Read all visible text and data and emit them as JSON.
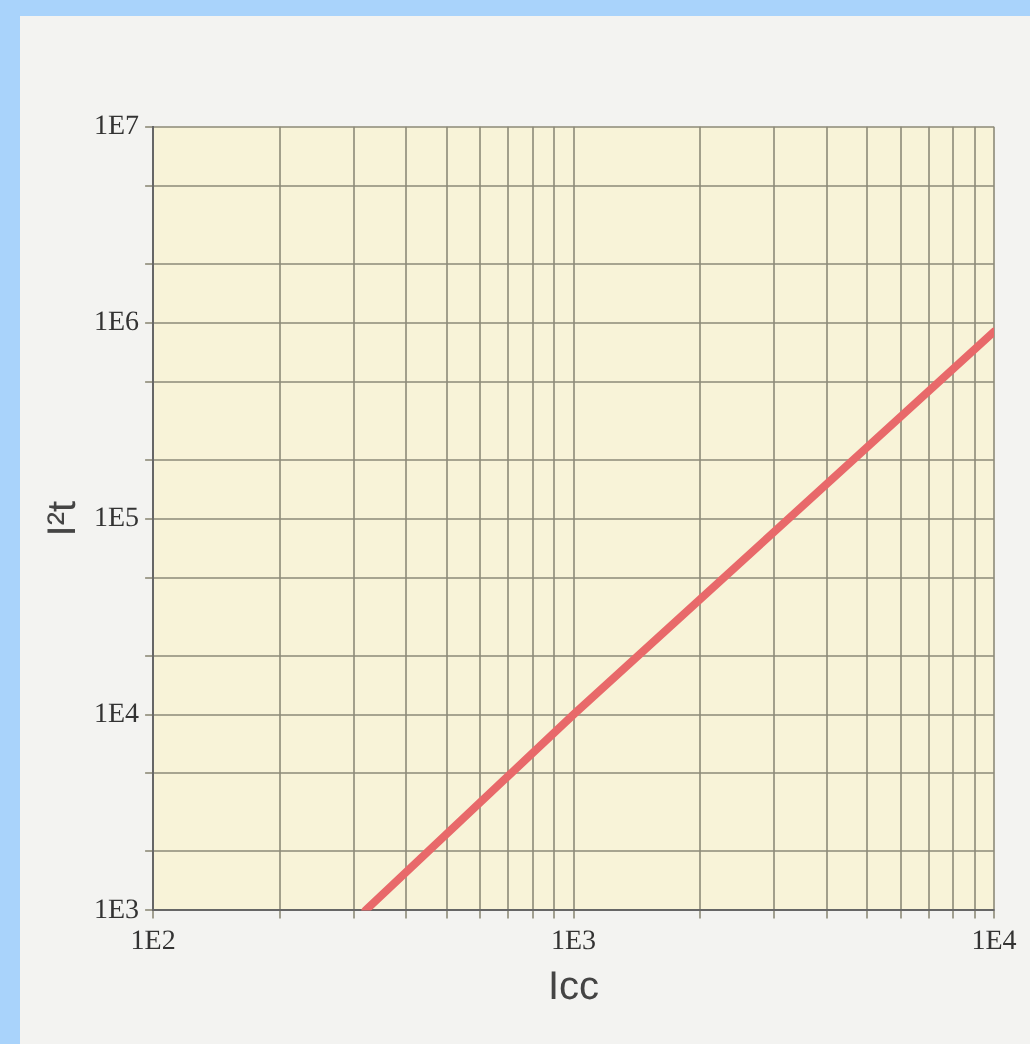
{
  "chart_data": {
    "type": "line",
    "xlabel": "Icc",
    "ylabel": "I²t",
    "log": "xy",
    "grid": true,
    "legend": false,
    "marker": "none",
    "line_style": "solid",
    "series": [
      {
        "color": "#e8696a",
        "x": [
          320,
          1000,
          10000
        ],
        "values": [
          1000,
          10000,
          900000
        ]
      }
    ],
    "xlim": [
      100,
      10000
    ],
    "ylim": [
      1000,
      10000000
    ],
    "xticks": [
      {
        "value": 100,
        "label": "1E2"
      },
      {
        "value": 200,
        "label": null
      },
      {
        "value": 300,
        "label": null
      },
      {
        "value": 400,
        "label": null
      },
      {
        "value": 500,
        "label": null
      },
      {
        "value": 600,
        "label": null
      },
      {
        "value": 700,
        "label": null
      },
      {
        "value": 800,
        "label": null
      },
      {
        "value": 900,
        "label": null
      },
      {
        "value": 1000,
        "label": "1E3"
      },
      {
        "value": 2000,
        "label": null
      },
      {
        "value": 3000,
        "label": null
      },
      {
        "value": 4000,
        "label": null
      },
      {
        "value": 5000,
        "label": null
      },
      {
        "value": 6000,
        "label": null
      },
      {
        "value": 7000,
        "label": null
      },
      {
        "value": 8000,
        "label": null
      },
      {
        "value": 9000,
        "label": null
      },
      {
        "value": 10000,
        "label": "1E4"
      }
    ],
    "yticks": [
      {
        "value": 1000,
        "label": "1E3"
      },
      {
        "value": 2000,
        "label": null
      },
      {
        "value": 5000,
        "label": null
      },
      {
        "value": 10000,
        "label": "1E4"
      },
      {
        "value": 20000,
        "label": null
      },
      {
        "value": 50000,
        "label": null
      },
      {
        "value": 100000,
        "label": "1E5"
      },
      {
        "value": 200000,
        "label": null
      },
      {
        "value": 500000,
        "label": null
      },
      {
        "value": 1000000,
        "label": "1E6"
      },
      {
        "value": 2000000,
        "label": null
      },
      {
        "value": 5000000,
        "label": null
      },
      {
        "value": 10000000,
        "label": "1E7"
      }
    ]
  }
}
